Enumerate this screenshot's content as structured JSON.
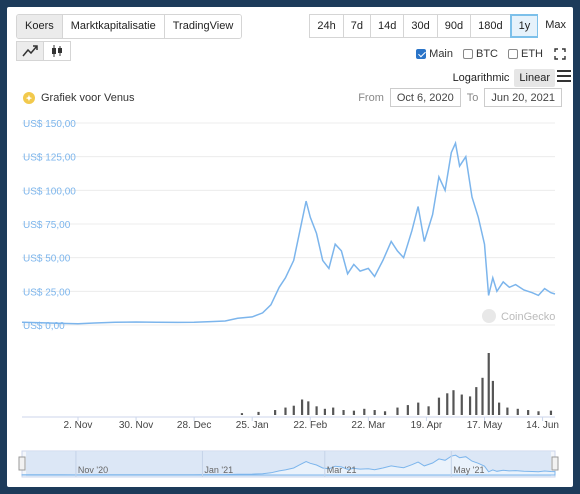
{
  "tabs": [
    {
      "label": "Koers",
      "active": true
    },
    {
      "label": "Marktkapitalisatie",
      "active": false
    },
    {
      "label": "TradingView",
      "active": false
    }
  ],
  "ranges": [
    {
      "label": "24h",
      "active": false
    },
    {
      "label": "7d",
      "active": false
    },
    {
      "label": "14d",
      "active": false
    },
    {
      "label": "30d",
      "active": false
    },
    {
      "label": "90d",
      "active": false
    },
    {
      "label": "180d",
      "active": false
    },
    {
      "label": "1y",
      "active": true
    },
    {
      "label": "Max",
      "active": false
    }
  ],
  "chart_types": [
    {
      "icon": "line-chart-icon",
      "active": true
    },
    {
      "icon": "candlestick-icon",
      "active": false
    }
  ],
  "checkboxes": [
    {
      "label": "Main",
      "checked": true
    },
    {
      "label": "BTC",
      "checked": false
    },
    {
      "label": "ETH",
      "checked": false
    }
  ],
  "scale": {
    "log_label": "Logarithmic",
    "linear_label": "Linear",
    "active": "Linear"
  },
  "coin_icon": "venus-coin-icon",
  "chart_title": "Grafiek voor Venus",
  "date_range": {
    "from_label": "From",
    "from_value": "Oct 6, 2020",
    "to_label": "To",
    "to_value": "Jun 20, 2021"
  },
  "watermark": "CoinGecko",
  "colors": {
    "line": "#7cb5ec",
    "volume": "#555555",
    "accent": "#2a74c8",
    "navigator": "#d6e4f5"
  },
  "chart_data": {
    "type": "line",
    "title": "Grafiek voor Venus",
    "y_unit_prefix": "US$ ",
    "ylim": [
      0,
      150
    ],
    "y_ticks": [
      0,
      25,
      50,
      75,
      100,
      125,
      150
    ],
    "y_tick_labels": [
      "US$ 0,00",
      "US$ 25,00",
      "US$ 50,00",
      "US$ 75,00",
      "US$ 100,00",
      "US$ 125,00",
      "US$ 150,00"
    ],
    "x_range": [
      "2020-10-06",
      "2021-06-20"
    ],
    "x_tick_labels": [
      {
        "date": "2020-11-02",
        "label": "2. Nov"
      },
      {
        "date": "2020-11-30",
        "label": "30. Nov"
      },
      {
        "date": "2020-12-28",
        "label": "28. Dec"
      },
      {
        "date": "2021-01-25",
        "label": "25. Jan"
      },
      {
        "date": "2021-02-22",
        "label": "22. Feb"
      },
      {
        "date": "2021-03-22",
        "label": "22. Mar"
      },
      {
        "date": "2021-04-19",
        "label": "19. Apr"
      },
      {
        "date": "2021-05-17",
        "label": "17. May"
      },
      {
        "date": "2021-06-14",
        "label": "14. Jun"
      }
    ],
    "series": [
      {
        "points": [
          [
            "2020-10-06",
            2.0
          ],
          [
            "2020-10-15",
            1.6
          ],
          [
            "2020-10-25",
            1.2
          ],
          [
            "2020-11-02",
            1.0
          ],
          [
            "2020-11-10",
            1.5
          ],
          [
            "2020-11-20",
            2.0
          ],
          [
            "2020-11-30",
            2.2
          ],
          [
            "2020-12-10",
            2.0
          ],
          [
            "2020-12-20",
            1.9
          ],
          [
            "2020-12-28",
            2.0
          ],
          [
            "2021-01-05",
            2.5
          ],
          [
            "2021-01-12",
            3.0
          ],
          [
            "2021-01-18",
            5.0
          ],
          [
            "2021-01-25",
            6.0
          ],
          [
            "2021-01-30",
            9.0
          ],
          [
            "2021-02-03",
            15.0
          ],
          [
            "2021-02-07",
            28.0
          ],
          [
            "2021-02-10",
            35.0
          ],
          [
            "2021-02-14",
            48.0
          ],
          [
            "2021-02-17",
            70.0
          ],
          [
            "2021-02-20",
            92.0
          ],
          [
            "2021-02-22",
            80.0
          ],
          [
            "2021-02-25",
            68.0
          ],
          [
            "2021-02-28",
            48.0
          ],
          [
            "2021-03-03",
            42.0
          ],
          [
            "2021-03-06",
            60.0
          ],
          [
            "2021-03-09",
            55.0
          ],
          [
            "2021-03-12",
            38.0
          ],
          [
            "2021-03-15",
            45.0
          ],
          [
            "2021-03-18",
            40.0
          ],
          [
            "2021-03-22",
            42.0
          ],
          [
            "2021-03-25",
            36.0
          ],
          [
            "2021-03-29",
            48.0
          ],
          [
            "2021-04-02",
            62.0
          ],
          [
            "2021-04-05",
            55.0
          ],
          [
            "2021-04-08",
            50.0
          ],
          [
            "2021-04-12",
            70.0
          ],
          [
            "2021-04-15",
            88.0
          ],
          [
            "2021-04-18",
            62.0
          ],
          [
            "2021-04-22",
            82.0
          ],
          [
            "2021-04-25",
            110.0
          ],
          [
            "2021-04-28",
            100.0
          ],
          [
            "2021-05-01",
            128.0
          ],
          [
            "2021-05-03",
            135.0
          ],
          [
            "2021-05-05",
            118.0
          ],
          [
            "2021-05-08",
            125.0
          ],
          [
            "2021-05-11",
            95.0
          ],
          [
            "2021-05-14",
            80.0
          ],
          [
            "2021-05-17",
            60.0
          ],
          [
            "2021-05-19",
            22.0
          ],
          [
            "2021-05-21",
            35.0
          ],
          [
            "2021-05-23",
            25.0
          ],
          [
            "2021-05-26",
            32.0
          ],
          [
            "2021-05-29",
            28.0
          ],
          [
            "2021-06-01",
            30.0
          ],
          [
            "2021-06-05",
            26.0
          ],
          [
            "2021-06-09",
            24.0
          ],
          [
            "2021-06-12",
            22.0
          ],
          [
            "2021-06-15",
            27.0
          ],
          [
            "2021-06-18",
            24.0
          ],
          [
            "2021-06-20",
            23.0
          ]
        ]
      }
    ],
    "volume": {
      "relative_values": [
        [
          "2021-01-20",
          0.03
        ],
        [
          "2021-01-28",
          0.05
        ],
        [
          "2021-02-05",
          0.08
        ],
        [
          "2021-02-10",
          0.12
        ],
        [
          "2021-02-14",
          0.15
        ],
        [
          "2021-02-18",
          0.25
        ],
        [
          "2021-02-21",
          0.22
        ],
        [
          "2021-02-25",
          0.14
        ],
        [
          "2021-03-01",
          0.1
        ],
        [
          "2021-03-05",
          0.12
        ],
        [
          "2021-03-10",
          0.08
        ],
        [
          "2021-03-15",
          0.07
        ],
        [
          "2021-03-20",
          0.1
        ],
        [
          "2021-03-25",
          0.08
        ],
        [
          "2021-03-30",
          0.06
        ],
        [
          "2021-04-05",
          0.12
        ],
        [
          "2021-04-10",
          0.16
        ],
        [
          "2021-04-15",
          0.2
        ],
        [
          "2021-04-20",
          0.14
        ],
        [
          "2021-04-25",
          0.28
        ],
        [
          "2021-04-29",
          0.35
        ],
        [
          "2021-05-02",
          0.4
        ],
        [
          "2021-05-06",
          0.33
        ],
        [
          "2021-05-10",
          0.3
        ],
        [
          "2021-05-13",
          0.45
        ],
        [
          "2021-05-16",
          0.6
        ],
        [
          "2021-05-19",
          1.0
        ],
        [
          "2021-05-21",
          0.55
        ],
        [
          "2021-05-24",
          0.2
        ],
        [
          "2021-05-28",
          0.12
        ],
        [
          "2021-06-02",
          0.1
        ],
        [
          "2021-06-07",
          0.08
        ],
        [
          "2021-06-12",
          0.06
        ],
        [
          "2021-06-18",
          0.07
        ]
      ]
    },
    "navigator_labels": [
      "Nov '20",
      "Jan '21",
      "Mar '21",
      "May '21"
    ],
    "grid": true,
    "legend": "none"
  }
}
